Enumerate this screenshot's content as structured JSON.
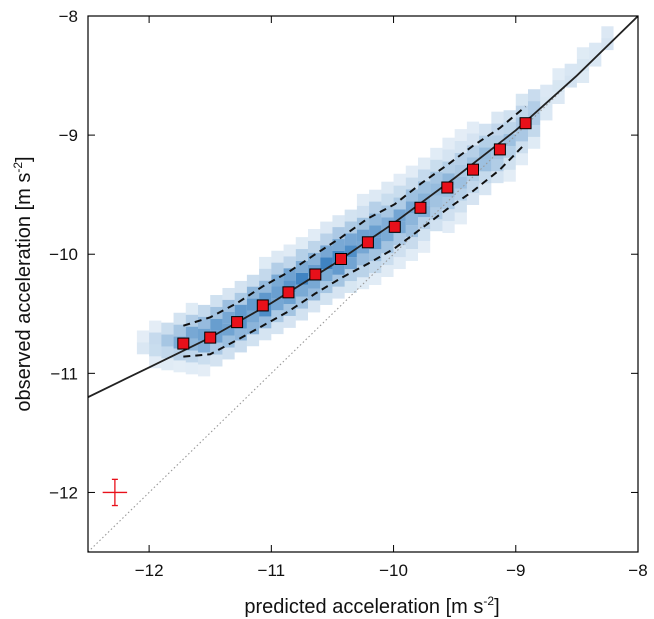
{
  "chart_data": {
    "type": "scatter",
    "xlabel": "predicted acceleration",
    "ylabel": "observed acceleration",
    "unit_text": "m s",
    "unit_exponent": "-2",
    "xlim": [
      -12.5,
      -8
    ],
    "ylim": [
      -12.5,
      -8
    ],
    "x_ticks": [
      -12,
      -11,
      -10,
      -9,
      -8
    ],
    "y_ticks": [
      -12,
      -11,
      -10,
      -9,
      -8
    ],
    "x_tick_labels": [
      "−12",
      "−11",
      "−10",
      "−9",
      "−8"
    ],
    "y_tick_labels": [
      "−12",
      "−11",
      "−10",
      "−9",
      "−8"
    ],
    "grid": false,
    "binned_points": {
      "x": [
        -11.72,
        -11.5,
        -11.28,
        -11.07,
        -10.86,
        -10.64,
        -10.43,
        -10.21,
        -9.99,
        -9.78,
        -9.56,
        -9.35,
        -9.13,
        -8.92
      ],
      "y": [
        -10.75,
        -10.7,
        -10.57,
        -10.43,
        -10.32,
        -10.17,
        -10.04,
        -9.9,
        -9.77,
        -9.61,
        -9.44,
        -9.29,
        -9.12,
        -8.9
      ],
      "color": "#e8101a"
    },
    "fit_curve": {
      "x": [
        -12.5,
        -12.0,
        -11.5,
        -11.0,
        -10.5,
        -10.0,
        -9.5,
        -9.0,
        -8.5,
        -8.0
      ],
      "y": [
        -11.2,
        -10.95,
        -10.7,
        -10.41,
        -10.09,
        -9.74,
        -9.36,
        -8.96,
        -8.5,
        -8.0
      ],
      "style": "solid",
      "color": "#222222"
    },
    "scatter_band": {
      "x": [
        -11.72,
        -11.5,
        -11.28,
        -11.07,
        -10.86,
        -10.64,
        -10.43,
        -10.21,
        -9.99,
        -9.78,
        -9.56,
        -9.35,
        -9.13,
        -8.92
      ],
      "upper": [
        -10.6,
        -10.53,
        -10.41,
        -10.27,
        -10.15,
        -10.0,
        -9.86,
        -9.7,
        -9.58,
        -9.41,
        -9.25,
        -9.09,
        -8.94,
        -8.76
      ],
      "lower": [
        -10.86,
        -10.84,
        -10.72,
        -10.6,
        -10.48,
        -10.33,
        -10.2,
        -10.08,
        -9.95,
        -9.79,
        -9.62,
        -9.47,
        -9.29,
        -9.07
      ],
      "style": "dashed",
      "color": "#111111"
    },
    "identity_line": {
      "x": [
        -12.5,
        -8
      ],
      "y": [
        -12.5,
        -8
      ],
      "style": "dotted",
      "color": "#999999"
    },
    "error_bar": {
      "x": -12.28,
      "y": -12.0,
      "x_err": 0.1,
      "y_err": 0.11,
      "color": "#e8101a"
    },
    "density_color": "#1f6fb8"
  }
}
